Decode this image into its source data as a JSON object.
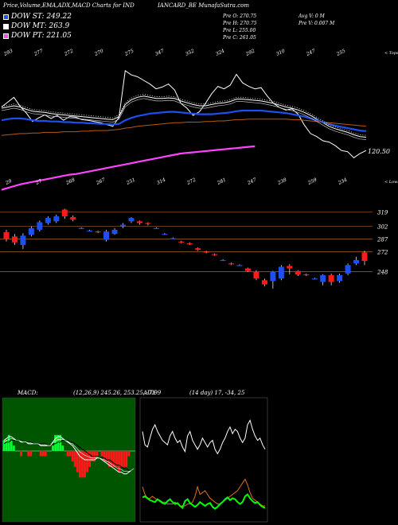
{
  "header": {
    "title": "Price,Volume,EMA,ADX,MACD Charts for IND",
    "site": "IANCARD_BE MunafaSutra.com"
  },
  "legend": [
    {
      "label": "DOW ST: 249.22",
      "color": "#1e4ff0"
    },
    {
      "label": "DOW MT: 263.9",
      "color": "#ffffff"
    },
    {
      "label": "DOW PT: 221.05",
      "color": "#ff44ff"
    }
  ],
  "stats": {
    "pre_o": "Pre O: 270.75",
    "pre_h": "Pre H: 270.75",
    "pre_l": "Pre L: 255.00",
    "pre_c": "Pre C: 261.05",
    "avg_v": "Avg V: 0 M",
    "pre_v": "Pre V: 0.007 M"
  },
  "colors": {
    "dow_st": "#1e4ff0",
    "dow_mt": "#ffffff",
    "dow_pt": "#ff44ff",
    "ema_brown": "#b85a10",
    "grid_line": "#c8732a",
    "up_candle": "#1e4ff0",
    "down_candle": "#ff1a1a",
    "macd_panel": "#005500",
    "adx_green": "#00ff00",
    "adx_orange": "#e0701a"
  },
  "chart_data": [
    {
      "type": "line",
      "panel": "price-ema",
      "top_labels": [
        "293",
        "277",
        "272",
        "270",
        "275",
        "347",
        "352",
        "324",
        "292",
        "310",
        "247",
        "255"
      ],
      "bottom_labels": [
        "29",
        "27",
        "268",
        "267",
        "251",
        "314",
        "272",
        "281",
        "247",
        "238",
        "259",
        "234"
      ],
      "topright_label": "< Tops",
      "bottomright_label": "< Lows",
      "last_value_label": "120.50",
      "series": [
        {
          "key": "price",
          "color": "#ffffff",
          "values": [
            232,
            240,
            248,
            233,
            222,
            208,
            214,
            219,
            213,
            218,
            210,
            216,
            215,
            211,
            210,
            208,
            206,
            203,
            200,
            215,
            292,
            285,
            282,
            276,
            270,
            262,
            265,
            270,
            260,
            238,
            230,
            218,
            224,
            238,
            254,
            266,
            262,
            268,
            286,
            272,
            266,
            262,
            264,
            250,
            238,
            231,
            227,
            229,
            220,
            202,
            188,
            183,
            176,
            174,
            168,
            160,
            158,
            148,
            155,
            160
          ]
        },
        {
          "key": "dow_mt",
          "color": "#ffffff",
          "values": [
            230,
            232,
            234,
            232,
            228,
            225,
            224,
            223,
            221,
            220,
            219,
            218,
            217,
            216,
            215,
            214,
            213,
            212,
            211,
            216,
            236,
            244,
            248,
            250,
            248,
            246,
            246,
            247,
            246,
            242,
            239,
            236,
            234,
            234,
            236,
            238,
            239,
            241,
            245,
            245,
            244,
            243,
            242,
            240,
            238,
            235,
            232,
            230,
            227,
            223,
            218,
            212,
            206,
            200,
            196,
            193,
            190,
            186,
            183,
            182
          ]
        },
        {
          "key": "dow_st",
          "color": "#1e4ff0",
          "values": [
            210,
            212,
            213,
            213,
            212,
            210,
            209,
            209,
            208,
            208,
            207,
            207,
            206,
            206,
            205,
            205,
            204,
            204,
            203,
            204,
            210,
            214,
            217,
            219,
            221,
            222,
            223,
            224,
            224,
            223,
            222,
            221,
            220,
            220,
            220,
            221,
            222,
            223,
            225,
            226,
            226,
            226,
            226,
            225,
            224,
            223,
            222,
            220,
            218,
            216,
            213,
            210,
            207,
            204,
            201,
            199,
            197,
            195,
            193,
            192
          ]
        },
        {
          "key": "ema_brown",
          "color": "#b85a10",
          "values": [
            185,
            186,
            187,
            188,
            188,
            189,
            189,
            190,
            190,
            190,
            191,
            191,
            191,
            192,
            192,
            193,
            193,
            193,
            194,
            195,
            197,
            198,
            200,
            201,
            202,
            203,
            204,
            205,
            206,
            206,
            207,
            207,
            207,
            208,
            208,
            209,
            209,
            210,
            211,
            211,
            212,
            212,
            212,
            212,
            212,
            212,
            212,
            211,
            211,
            210,
            209,
            208,
            207,
            206,
            205,
            204,
            203,
            202,
            201,
            200
          ]
        },
        {
          "key": "dow_pt",
          "color": "#ff44ff",
          "values": [
            95,
            98,
            101,
            104,
            106,
            108,
            110,
            112,
            114,
            116,
            118,
            120,
            121,
            123,
            125,
            127,
            129,
            131,
            133,
            135,
            137,
            139,
            141,
            143,
            145,
            147,
            149,
            151,
            153,
            155,
            156,
            157,
            158,
            159,
            160,
            161,
            162,
            163,
            164,
            165,
            166,
            167
          ]
        }
      ]
    },
    {
      "type": "candlestick",
      "panel": "candles",
      "level_labels": [
        "319",
        "302",
        "287",
        "272",
        "248"
      ],
      "candles": [
        {
          "o": 295,
          "c": 287,
          "h": 298,
          "l": 284
        },
        {
          "o": 290,
          "c": 283,
          "h": 293,
          "l": 280
        },
        {
          "o": 280,
          "c": 291,
          "h": 294,
          "l": 275
        },
        {
          "o": 292,
          "c": 300,
          "h": 302,
          "l": 290
        },
        {
          "o": 298,
          "c": 307,
          "h": 309,
          "l": 296
        },
        {
          "o": 306,
          "c": 312,
          "h": 314,
          "l": 304
        },
        {
          "o": 308,
          "c": 314,
          "h": 316,
          "l": 306
        },
        {
          "o": 322,
          "c": 314,
          "h": 323,
          "l": 311
        },
        {
          "o": 313,
          "c": 310,
          "h": 315,
          "l": 308
        },
        {
          "o": 300,
          "c": 300,
          "h": 301,
          "l": 299
        },
        {
          "o": 297,
          "c": 297,
          "h": 298,
          "l": 296
        },
        {
          "o": 296,
          "c": 295,
          "h": 297,
          "l": 294
        },
        {
          "o": 286,
          "c": 296,
          "h": 298,
          "l": 284
        },
        {
          "o": 293,
          "c": 298,
          "h": 300,
          "l": 292
        },
        {
          "o": 302,
          "c": 304,
          "h": 306,
          "l": 300
        },
        {
          "o": 308,
          "c": 312,
          "h": 313,
          "l": 306
        },
        {
          "o": 308,
          "c": 306,
          "h": 309,
          "l": 304
        },
        {
          "o": 306,
          "c": 305,
          "h": 307,
          "l": 303
        },
        {
          "o": 300,
          "c": 300,
          "h": 301,
          "l": 299
        },
        {
          "o": 293,
          "c": 293,
          "h": 294,
          "l": 292
        },
        {
          "o": 288,
          "c": 288,
          "h": 289,
          "l": 287
        },
        {
          "o": 284,
          "c": 283,
          "h": 285,
          "l": 282
        },
        {
          "o": 282,
          "c": 281,
          "h": 283,
          "l": 280
        },
        {
          "o": 276,
          "c": 274,
          "h": 277,
          "l": 273
        },
        {
          "o": 272,
          "c": 271,
          "h": 273,
          "l": 270
        },
        {
          "o": 269,
          "c": 268,
          "h": 270,
          "l": 267
        },
        {
          "o": 262,
          "c": 262,
          "h": 263,
          "l": 261
        },
        {
          "o": 258,
          "c": 257,
          "h": 259,
          "l": 256
        },
        {
          "o": 256,
          "c": 256,
          "h": 257,
          "l": 255
        },
        {
          "o": 252,
          "c": 249,
          "h": 253,
          "l": 248
        },
        {
          "o": 248,
          "c": 240,
          "h": 250,
          "l": 238
        },
        {
          "o": 238,
          "c": 233,
          "h": 240,
          "l": 231
        },
        {
          "o": 237,
          "c": 248,
          "h": 249,
          "l": 228
        },
        {
          "o": 240,
          "c": 254,
          "h": 256,
          "l": 238
        },
        {
          "o": 255,
          "c": 252,
          "h": 257,
          "l": 245
        },
        {
          "o": 249,
          "c": 245,
          "h": 250,
          "l": 243
        },
        {
          "o": 245,
          "c": 244,
          "h": 246,
          "l": 243
        },
        {
          "o": 240,
          "c": 240,
          "h": 241,
          "l": 239
        },
        {
          "o": 236,
          "c": 244,
          "h": 245,
          "l": 232
        },
        {
          "o": 244,
          "c": 236,
          "h": 246,
          "l": 232
        },
        {
          "o": 237,
          "c": 244,
          "h": 246,
          "l": 235
        },
        {
          "o": 246,
          "c": 256,
          "h": 258,
          "l": 244
        },
        {
          "o": 258,
          "c": 262,
          "h": 266,
          "l": 256
        },
        {
          "o": 271,
          "c": 261,
          "h": 273,
          "l": 256
        }
      ]
    },
    {
      "type": "line",
      "panel": "macd",
      "label": "MACD:",
      "values_text": "(12,26,9) 245.26, 253.25, -7.99",
      "macd": [
        6,
        7,
        8,
        8,
        7,
        6,
        6,
        5,
        5,
        5,
        4,
        4,
        4,
        4,
        4,
        3,
        3,
        3,
        3,
        3,
        5,
        7,
        8,
        8,
        7,
        6,
        5,
        4,
        3,
        1,
        -1,
        -3,
        -4,
        -5,
        -5,
        -5,
        -5,
        -5,
        -4,
        -4,
        -5,
        -6,
        -7,
        -8,
        -9,
        -10,
        -11,
        -12,
        -12,
        -13,
        -13,
        -12,
        -11,
        -10
      ],
      "signal": [
        4,
        5,
        5,
        6,
        6,
        6,
        6,
        6,
        5,
        5,
        5,
        5,
        4,
        4,
        4,
        4,
        4,
        4,
        3,
        3,
        4,
        4,
        5,
        5,
        6,
        6,
        6,
        5,
        5,
        4,
        3,
        2,
        1,
        0,
        -1,
        -2,
        -3,
        -3,
        -3,
        -4,
        -4,
        -4,
        -5,
        -5,
        -6,
        -7,
        -8,
        -8,
        -9,
        -10,
        -10,
        -11,
        -11,
        -10
      ]
    },
    {
      "type": "line",
      "panel": "adx",
      "label": "ADX",
      "values_text": "(14 day) 17, -34, 25",
      "adx": [
        38,
        40,
        36,
        32,
        30,
        28,
        34,
        30,
        26,
        24,
        30,
        34,
        28,
        24,
        26,
        20,
        16,
        30,
        34,
        26,
        22,
        18,
        22,
        28,
        24,
        20,
        24,
        26,
        18,
        14,
        18,
        24,
        28,
        34,
        38,
        32,
        36,
        34,
        28,
        24,
        28,
        40,
        44,
        36,
        30,
        26,
        28,
        22,
        18,
        16
      ],
      "plus_di": [
        34,
        22,
        20,
        28,
        36,
        40,
        34,
        30,
        26,
        24,
        22,
        30,
        34,
        28,
        24,
        26,
        20,
        16,
        30,
        34,
        26,
        22,
        18,
        22,
        28,
        24,
        20,
        24,
        26,
        18,
        14,
        18,
        24,
        28,
        34,
        38,
        32,
        36,
        34,
        28,
        24,
        28,
        40,
        44,
        36,
        30,
        26,
        28,
        22,
        18
      ],
      "minus_di": [
        30,
        22,
        18,
        18,
        20,
        18,
        16,
        16,
        14,
        14,
        12,
        12,
        12,
        14,
        12,
        10,
        10,
        10,
        12,
        12,
        14,
        20,
        30,
        22,
        24,
        26,
        22,
        18,
        16,
        14,
        12,
        12,
        14,
        16,
        18,
        20,
        22,
        24,
        26,
        30,
        34,
        38,
        32,
        24,
        18,
        16,
        14,
        12,
        10,
        10
      ]
    }
  ]
}
